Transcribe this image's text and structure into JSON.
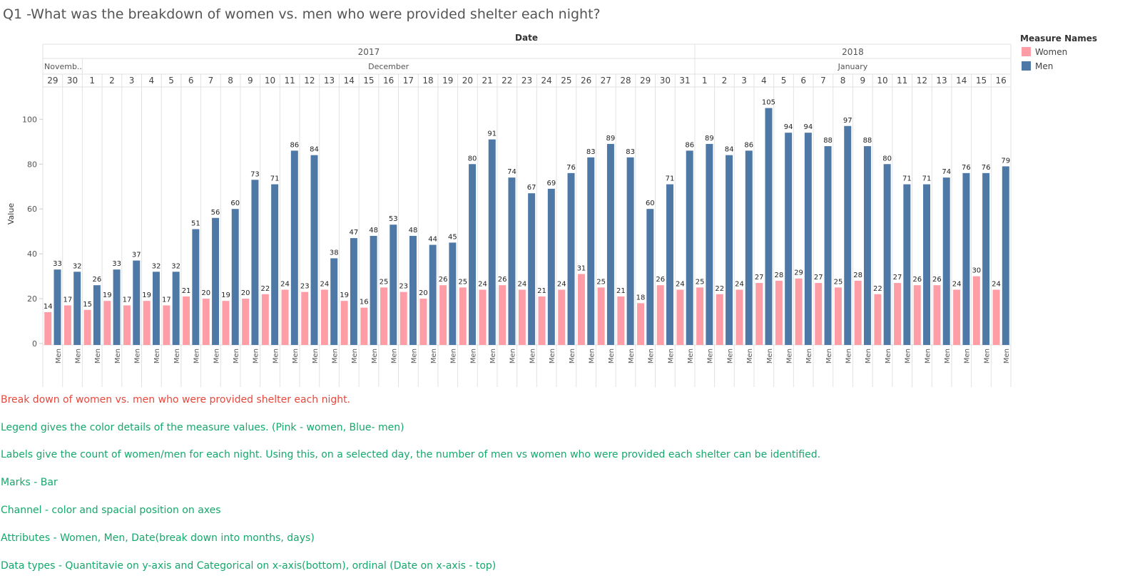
{
  "title": "Q1 -What was the breakdown of women vs. men who were provided shelter each night?",
  "colors": {
    "women": "#ff9da7",
    "men": "#4e79a7"
  },
  "chart_data": {
    "type": "bar",
    "header_title": "Date",
    "ylabel": "Value",
    "ylim": [
      0,
      110
    ],
    "yticks": [
      0,
      20,
      40,
      60,
      80,
      100
    ],
    "years": [
      {
        "label": "2017",
        "day_count": 33
      },
      {
        "label": "2018",
        "day_count": 16
      }
    ],
    "months": [
      {
        "label": "Novemb..",
        "day_count": 2
      },
      {
        "label": "December",
        "day_count": 31
      },
      {
        "label": "January",
        "day_count": 16
      }
    ],
    "categories": [
      "29",
      "30",
      "1",
      "2",
      "3",
      "4",
      "5",
      "6",
      "7",
      "8",
      "9",
      "10",
      "11",
      "12",
      "13",
      "14",
      "15",
      "16",
      "17",
      "18",
      "19",
      "20",
      "21",
      "22",
      "23",
      "24",
      "25",
      "26",
      "27",
      "28",
      "29",
      "30",
      "31",
      "1",
      "2",
      "3",
      "4",
      "5",
      "6",
      "7",
      "8",
      "9",
      "10",
      "11",
      "12",
      "13",
      "14",
      "15",
      "16"
    ],
    "bottom_label": "Men",
    "legend": {
      "title": "Measure Names",
      "placement": "top-right",
      "items": [
        {
          "label": "Women",
          "color": "#ff9da7"
        },
        {
          "label": "Men",
          "color": "#4e79a7"
        }
      ]
    },
    "grid": false,
    "series": [
      {
        "name": "Women",
        "color": "#ff9da7",
        "values": [
          14,
          17,
          15,
          19,
          17,
          19,
          17,
          21,
          20,
          19,
          20,
          22,
          24,
          23,
          24,
          19,
          16,
          25,
          23,
          20,
          26,
          25,
          24,
          26,
          24,
          21,
          24,
          31,
          25,
          21,
          18,
          26,
          24,
          25,
          22,
          24,
          27,
          28,
          29,
          27,
          25,
          28,
          22,
          27,
          26,
          26,
          24,
          30,
          24
        ]
      },
      {
        "name": "Men",
        "color": "#4e79a7",
        "values": [
          33,
          32,
          26,
          33,
          37,
          32,
          32,
          51,
          56,
          60,
          73,
          71,
          86,
          84,
          38,
          47,
          48,
          53,
          48,
          44,
          45,
          80,
          91,
          74,
          67,
          69,
          76,
          83,
          89,
          83,
          60,
          71,
          86,
          89,
          84,
          86,
          105,
          94,
          94,
          88,
          97,
          88,
          80,
          71,
          71,
          74,
          76,
          76,
          79
        ]
      }
    ]
  },
  "notes": [
    {
      "text": "Break down of women vs. men who were provided shelter each night.",
      "style": "red"
    },
    {
      "text": "Legend gives the color details of the measure values.  (Pink - women, Blue- men)",
      "style": "green"
    },
    {
      "text": "Labels give the count of women/men for each night. Using this, on a selected day, the number of men vs women who were provided each shelter can be identified.",
      "style": "green"
    },
    {
      "text": "Marks - Bar",
      "style": "green"
    },
    {
      "text": "Channel - color and spacial position on axes",
      "style": "green"
    },
    {
      "text": "Attributes - Women, Men, Date(break down into months, days)",
      "style": "green"
    },
    {
      "text": "Data types - Quantitavie on y-axis and Categorical on x-axis(bottom), ordinal (Date on x-axis - top)",
      "style": "green"
    }
  ]
}
